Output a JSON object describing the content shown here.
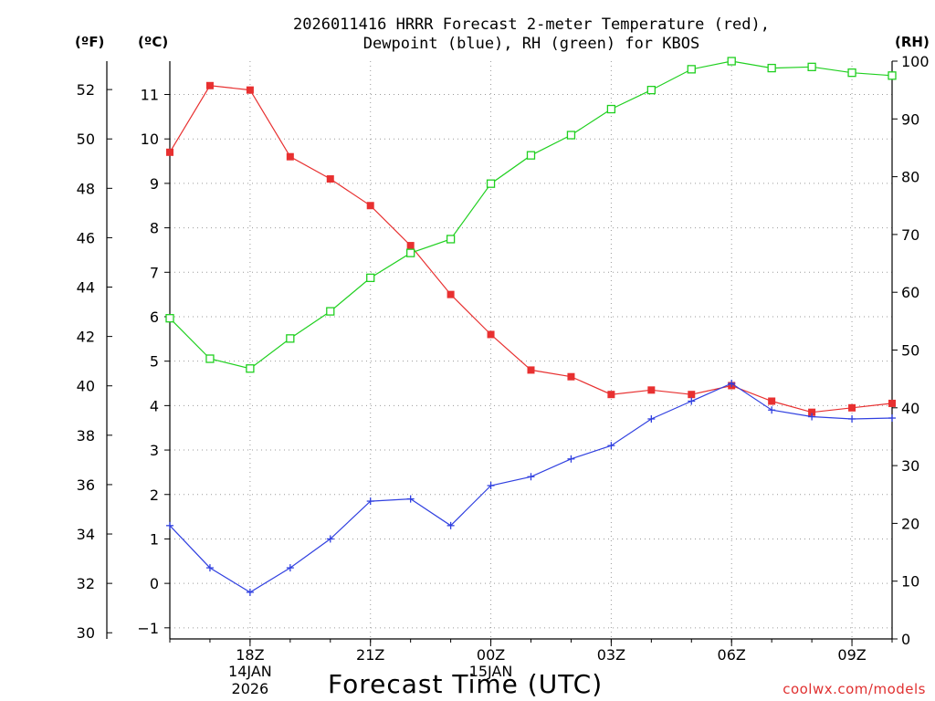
{
  "chart_data": {
    "type": "line",
    "title": "2026011416 HRRR Forecast 2-meter Temperature (red),",
    "title_line2": "Dewpoint (blue), RH (green) for KBOS",
    "units": {
      "f": "(ºF)",
      "c": "(ºC)",
      "rh": "(RH)"
    },
    "xlabel": "Forecast Time (UTC)",
    "credit": "coolwx.com/models",
    "x": [
      16,
      17,
      18,
      19,
      20,
      21,
      22,
      23,
      24,
      25,
      26,
      27,
      28,
      29,
      30,
      31,
      32,
      33,
      34
    ],
    "x_range": [
      16,
      34
    ],
    "x_ticks": [
      {
        "x": 18,
        "label": "18Z",
        "sub": "14JAN",
        "sub2": "2026"
      },
      {
        "x": 21,
        "label": "21Z"
      },
      {
        "x": 24,
        "label": "00Z",
        "sub": "15JAN"
      },
      {
        "x": 27,
        "label": "03Z"
      },
      {
        "x": 30,
        "label": "06Z"
      },
      {
        "x": 33,
        "label": "09Z"
      }
    ],
    "y_celsius_range": [
      -1.25,
      11.75
    ],
    "y_celsius_ticks": [
      "−1",
      "0",
      "1",
      "2",
      "3",
      "4",
      "5",
      "6",
      "7",
      "8",
      "9",
      "10",
      "11"
    ],
    "y_fahrenheit_ticks": [
      "30",
      "32",
      "34",
      "36",
      "38",
      "40",
      "42",
      "44",
      "46",
      "48",
      "50",
      "52"
    ],
    "y_rh_range": [
      0,
      100
    ],
    "y_rh_ticks": [
      "0",
      "10",
      "20",
      "30",
      "40",
      "50",
      "60",
      "70",
      "80",
      "90",
      "100"
    ],
    "grid": true,
    "series": [
      {
        "name": "Temperature",
        "color": "#e83030",
        "marker": "filled-square",
        "axis": "celsius",
        "values": [
          9.7,
          11.2,
          11.1,
          9.6,
          9.1,
          8.5,
          7.6,
          6.5,
          5.6,
          4.8,
          4.65,
          4.25,
          4.35,
          4.25,
          4.45,
          4.1,
          3.85,
          3.95,
          4.05
        ]
      },
      {
        "name": "Dewpoint",
        "color": "#3040e0",
        "marker": "plus",
        "axis": "celsius",
        "values": [
          1.3,
          0.35,
          -0.2,
          0.35,
          1.0,
          1.85,
          1.9,
          1.3,
          2.2,
          2.4,
          2.8,
          3.1,
          3.7,
          4.1,
          4.5,
          3.9,
          3.75,
          3.7,
          3.72
        ]
      },
      {
        "name": "RH",
        "color": "#20d020",
        "marker": "open-square",
        "axis": "rh",
        "values": [
          55.5,
          48.5,
          46.8,
          52.0,
          56.7,
          62.5,
          66.8,
          69.2,
          78.8,
          83.7,
          87.2,
          91.7,
          95.0,
          98.6,
          100.0,
          98.8,
          99.0,
          98.0,
          97.5
        ]
      }
    ]
  }
}
